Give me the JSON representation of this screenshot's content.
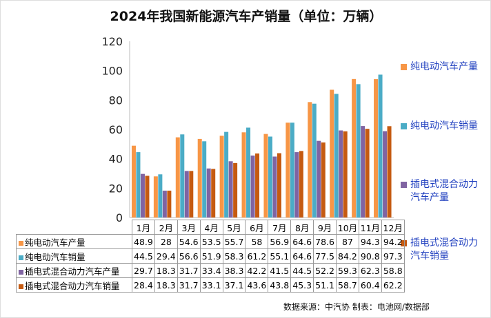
{
  "chart_data": {
    "type": "bar",
    "title": "2024年我国新能源汽车产销量（单位：万辆）",
    "categories": [
      "1月",
      "2月",
      "3月",
      "4月",
      "5月",
      "6月",
      "7月",
      "8月",
      "9月",
      "10月",
      "11月",
      "12月"
    ],
    "ylim": [
      0,
      120
    ],
    "yticks": [
      0,
      20,
      40,
      60,
      80,
      100,
      120
    ],
    "grid": false,
    "legend_placement": "right",
    "series": [
      {
        "name": "纯电动汽车产量",
        "color": "#F79646",
        "values": [
          48.9,
          28,
          54.6,
          53.5,
          55.7,
          58,
          56.9,
          64.6,
          78.6,
          87,
          94.3,
          94.2
        ]
      },
      {
        "name": "纯电动汽车销量",
        "color": "#4BACC6",
        "values": [
          44.5,
          29.4,
          56.6,
          51.9,
          58.3,
          61.2,
          55.1,
          64.6,
          77.5,
          84.2,
          90.8,
          97.3
        ]
      },
      {
        "name": "插电式混合动力汽车产量",
        "color": "#8064A2",
        "values": [
          29.7,
          18.3,
          31.7,
          33.4,
          38.3,
          42.2,
          41.5,
          44.5,
          52.2,
          59.3,
          62.3,
          58.8
        ]
      },
      {
        "name": "插电式混合动力汽车销量",
        "color": "#C55A11",
        "values": [
          28.4,
          18.3,
          31.7,
          33.1,
          37.1,
          43.6,
          43.8,
          45.3,
          51.1,
          58.7,
          60.4,
          62.2
        ]
      }
    ],
    "legend_lines": [
      [
        "纯电动汽车产量"
      ],
      [
        "纯电动汽车销量"
      ],
      [
        "插电式混合动力",
        "汽车产量"
      ],
      [
        "插电式混合动力",
        "汽车销量"
      ]
    ]
  },
  "footer": {
    "source": "数据来源：中汽协   制表：电池网/数据部"
  }
}
